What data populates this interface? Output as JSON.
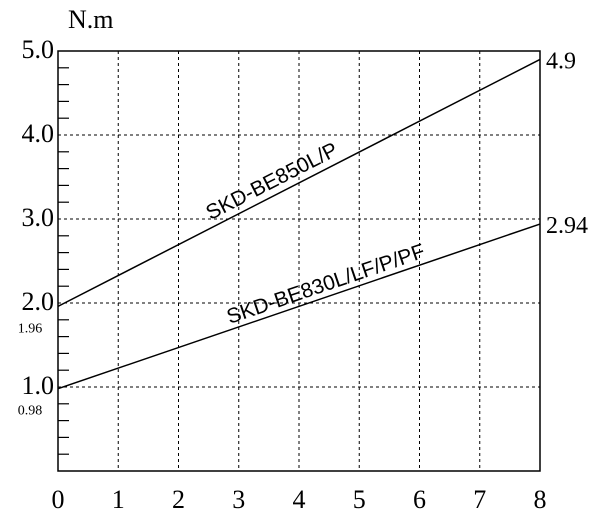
{
  "chart_data": {
    "type": "line",
    "ylabel": "N.m",
    "xlim": [
      0,
      8
    ],
    "ylim": [
      0,
      5
    ],
    "grid": true,
    "grid_style": "dashed",
    "x_ticks": [
      "0",
      "1",
      "2",
      "3",
      "4",
      "5",
      "6",
      "7",
      "8"
    ],
    "y_ticks": [
      "1.0",
      "2.0",
      "3.0",
      "4.0",
      "5.0"
    ],
    "series": [
      {
        "name": "SKD-BE850L/P",
        "x": [
          0,
          8
        ],
        "y": [
          1.96,
          4.9
        ]
      },
      {
        "name": "SKD-BE830L/LF/P/PF",
        "x": [
          0,
          8
        ],
        "y": [
          0.98,
          2.94
        ]
      }
    ],
    "annotations": [
      {
        "text": "4.9",
        "x": 8,
        "y": 4.9,
        "side": "right"
      },
      {
        "text": "2.94",
        "x": 8,
        "y": 2.94,
        "side": "right"
      },
      {
        "text": "1.96",
        "x": 0,
        "y": 1.96,
        "side": "left"
      },
      {
        "text": "0.98",
        "x": 0,
        "y": 0.98,
        "side": "left"
      }
    ]
  }
}
